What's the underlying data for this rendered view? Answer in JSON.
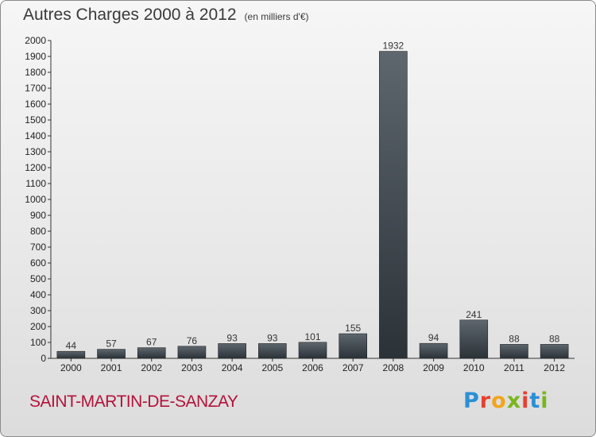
{
  "title": "Autres Charges 2000 à 2012",
  "subtitle": "(en milliers d'€)",
  "commune": "SAINT-MARTIN-DE-SANZAY",
  "logo": {
    "text": "Proxiti"
  },
  "colors": {
    "bar_top": "#5e666e",
    "bar_bottom": "#2b3238",
    "commune_text": "#b4123a"
  },
  "chart_data": {
    "type": "bar",
    "categories": [
      "2000",
      "2001",
      "2002",
      "2003",
      "2004",
      "2005",
      "2006",
      "2007",
      "2008",
      "2009",
      "2010",
      "2011",
      "2012"
    ],
    "values": [
      44,
      57,
      67,
      76,
      93,
      93,
      101,
      155,
      1932,
      94,
      241,
      88,
      88
    ],
    "ylim": [
      0,
      2000
    ],
    "yticks": [
      0,
      100,
      200,
      300,
      400,
      500,
      600,
      700,
      800,
      900,
      1000,
      1100,
      1200,
      1300,
      1400,
      1500,
      1600,
      1700,
      1800,
      1900,
      2000
    ],
    "data_labels": [
      "44",
      "57",
      "67",
      "76",
      "93",
      "93",
      "101",
      "155",
      "1932",
      "94",
      "241",
      "88",
      "88"
    ],
    "grid": false
  }
}
